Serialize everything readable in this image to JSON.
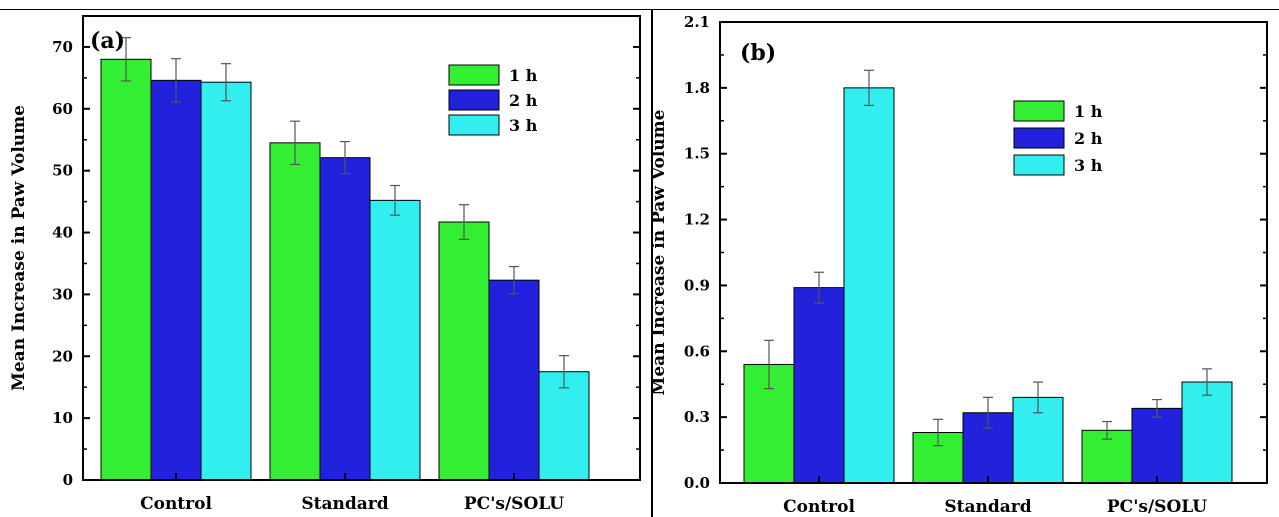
{
  "colors": {
    "1 h": "#33ee33",
    "2 h": "#2222dd",
    "3 h": "#33eeee"
  },
  "chart_data": [
    {
      "type": "bar",
      "panel_label": "(a)",
      "ylabel": "Mean Increase in Paw Volume",
      "xlabel": "",
      "ylim": [
        0,
        75
      ],
      "yticks": [
        "0",
        "10",
        "20",
        "30",
        "40",
        "50",
        "60",
        "70"
      ],
      "categories": [
        "Control",
        "Standard",
        "PC's/SOLU"
      ],
      "legend_position": "top-right",
      "series": [
        {
          "name": "1 h",
          "values": [
            68.0,
            54.5,
            41.7
          ],
          "errors": [
            3.5,
            3.5,
            2.8
          ]
        },
        {
          "name": "2 h",
          "values": [
            64.6,
            52.1,
            32.3
          ],
          "errors": [
            3.5,
            2.6,
            2.2
          ]
        },
        {
          "name": "3 h",
          "values": [
            64.3,
            45.2,
            17.5
          ],
          "errors": [
            3.0,
            2.4,
            2.6
          ]
        }
      ]
    },
    {
      "type": "bar",
      "panel_label": "(b)",
      "ylabel": "Mean Increase in Paw Volume",
      "xlabel": "",
      "ylim": [
        0,
        2.1
      ],
      "yticks": [
        "0.0",
        "0.3",
        "0.6",
        "0.9",
        "1.2",
        "1.5",
        "1.8",
        "2.1"
      ],
      "categories": [
        "Control",
        "Standard",
        "PC's/SOLU"
      ],
      "legend_position": "top-center",
      "series": [
        {
          "name": "1 h",
          "values": [
            0.54,
            0.23,
            0.24
          ],
          "errors": [
            0.11,
            0.06,
            0.04
          ]
        },
        {
          "name": "2 h",
          "values": [
            0.89,
            0.32,
            0.34
          ],
          "errors": [
            0.07,
            0.07,
            0.04
          ]
        },
        {
          "name": "3 h",
          "values": [
            1.8,
            0.39,
            0.46
          ],
          "errors": [
            0.08,
            0.07,
            0.06
          ]
        }
      ]
    }
  ]
}
